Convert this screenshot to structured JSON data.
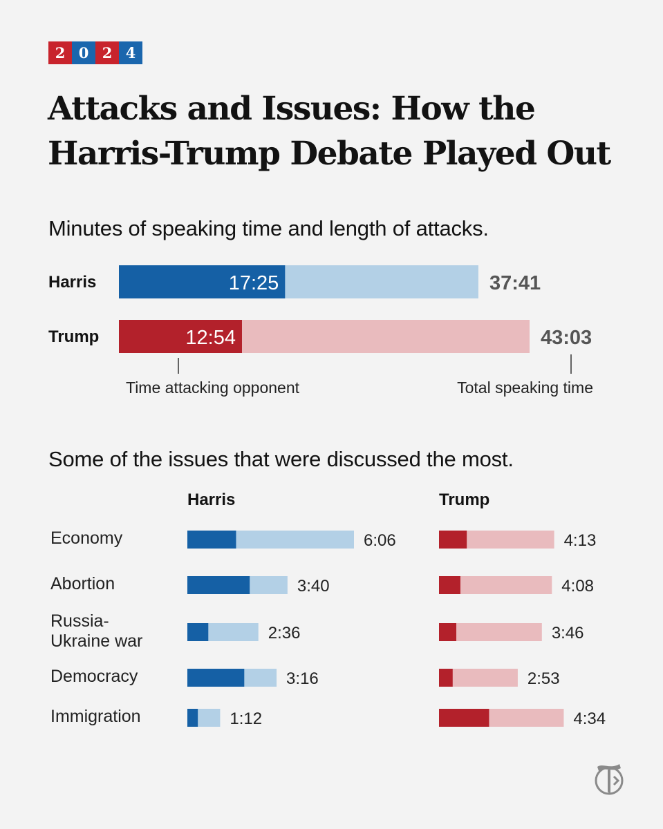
{
  "badge": {
    "digits": [
      "2",
      "0",
      "2",
      "4"
    ]
  },
  "title": "Attacks and Issues: How the Harris-Trump Debate Played Out",
  "subtitle_speaking": "Minutes of speaking time and length of attacks.",
  "subtitle_issues": "Some of the issues that were discussed the most.",
  "annotations": {
    "attacking": "Time attacking opponent",
    "total": "Total speaking time"
  },
  "colors": {
    "harris_dark": "#1560a5",
    "harris_light": "#b3d0e6",
    "trump_dark": "#b3212b",
    "trump_light": "#e9bbbe",
    "background": "#f3f3f3"
  },
  "logo_icon": "nyt-logo-icon",
  "chart_data": [
    {
      "type": "bar",
      "title": "Minutes of speaking time and length of attacks.",
      "stacked_overlay": true,
      "series": [
        {
          "name": "Harris",
          "attack": "17:25",
          "total": "37:41",
          "attack_seconds": 1045,
          "total_seconds": 2261
        },
        {
          "name": "Trump",
          "attack": "12:54",
          "total": "43:03",
          "attack_seconds": 774,
          "total_seconds": 2583
        }
      ],
      "legend_labels": [
        "Time attacking opponent",
        "Total speaking time"
      ]
    },
    {
      "type": "bar",
      "title": "Some of the issues that were discussed the most.",
      "columns": [
        "Harris",
        "Trump"
      ],
      "issues": [
        {
          "label_lines": [
            "Economy"
          ],
          "harris": {
            "total": "6:06",
            "total_seconds": 366,
            "attack_seconds": 107
          },
          "trump": {
            "total": "4:13",
            "total_seconds": 253,
            "attack_seconds": 61
          }
        },
        {
          "label_lines": [
            "Abortion"
          ],
          "harris": {
            "total": "3:40",
            "total_seconds": 220,
            "attack_seconds": 137
          },
          "trump": {
            "total": "4:08",
            "total_seconds": 248,
            "attack_seconds": 47
          }
        },
        {
          "label_lines": [
            "Russia-",
            "Ukraine war"
          ],
          "harris": {
            "total": "2:36",
            "total_seconds": 156,
            "attack_seconds": 46
          },
          "trump": {
            "total": "3:46",
            "total_seconds": 226,
            "attack_seconds": 38
          }
        },
        {
          "label_lines": [
            "Democracy"
          ],
          "harris": {
            "total": "3:16",
            "total_seconds": 196,
            "attack_seconds": 125
          },
          "trump": {
            "total": "2:53",
            "total_seconds": 173,
            "attack_seconds": 30
          }
        },
        {
          "label_lines": [
            "Immigration"
          ],
          "harris": {
            "total": "1:12",
            "total_seconds": 72,
            "attack_seconds": 23
          },
          "trump": {
            "total": "4:34",
            "total_seconds": 274,
            "attack_seconds": 110
          }
        }
      ]
    }
  ]
}
